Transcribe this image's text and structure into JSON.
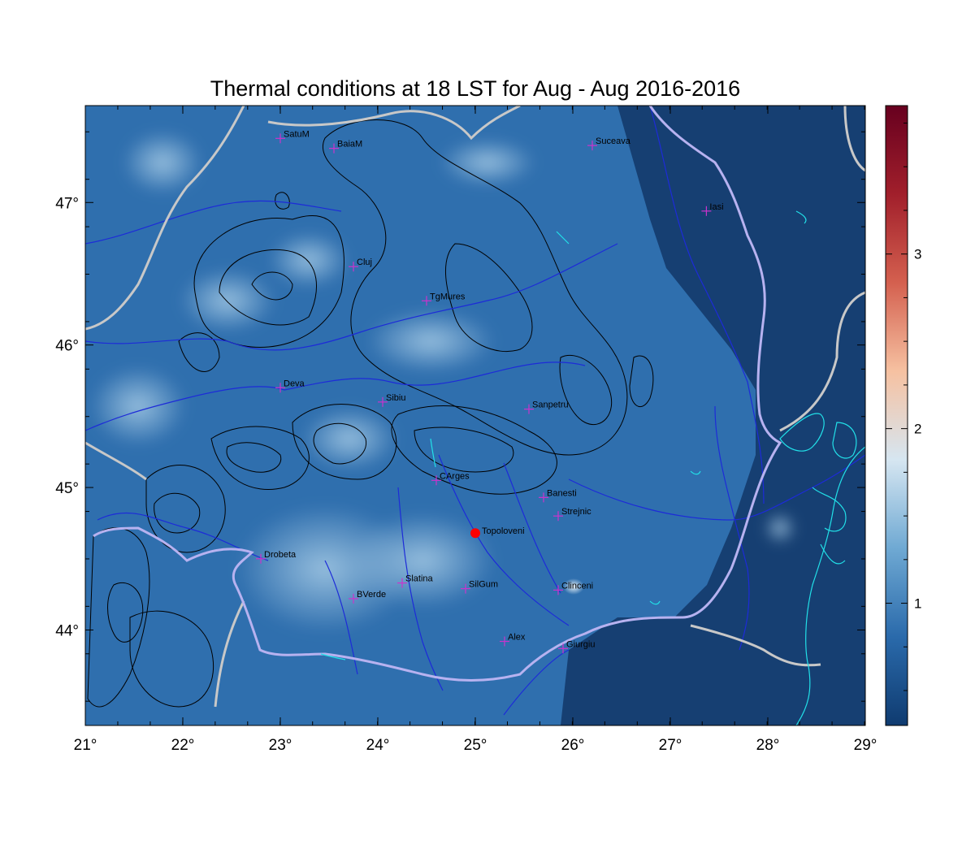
{
  "title": "Thermal conditions at 18 LST for Aug - Aug  2016-2016",
  "map": {
    "lon_range": [
      21,
      29
    ],
    "lat_range": [
      43.33,
      47.68
    ],
    "lon_ticks": [
      {
        "value": 21,
        "label": "21°"
      },
      {
        "value": 22,
        "label": "22°"
      },
      {
        "value": 23,
        "label": "23°"
      },
      {
        "value": 24,
        "label": "24°"
      },
      {
        "value": 25,
        "label": "25°"
      },
      {
        "value": 26,
        "label": "26°"
      },
      {
        "value": 27,
        "label": "27°"
      },
      {
        "value": 28,
        "label": "28°"
      },
      {
        "value": 29,
        "label": "29°"
      }
    ],
    "lat_ticks": [
      {
        "value": 44,
        "label": "44°"
      },
      {
        "value": 45,
        "label": "45°"
      },
      {
        "value": 46,
        "label": "46°"
      },
      {
        "value": 47,
        "label": "47°"
      }
    ],
    "colors": {
      "ocean_low": "#123f72",
      "field_mid": "#2f6fae",
      "field_high": "#9cc5e2",
      "rivers": "#1d2bd8",
      "borders": "#c8c8c8",
      "romania_border": "#b7b2f0",
      "coast": "#22e0e8",
      "contours": "#000000",
      "city_marker": "#cc33cc",
      "highlight": "#ff0000"
    },
    "cities": [
      {
        "name": "SatuM",
        "lon": 23.0,
        "lat": 47.45
      },
      {
        "name": "BaiaM",
        "lon": 23.55,
        "lat": 47.38
      },
      {
        "name": "Suceava",
        "lon": 26.2,
        "lat": 47.4
      },
      {
        "name": "Iasi",
        "lon": 27.37,
        "lat": 46.94
      },
      {
        "name": "Cluj",
        "lon": 23.75,
        "lat": 46.55
      },
      {
        "name": "TgMures",
        "lon": 24.5,
        "lat": 46.31
      },
      {
        "name": "Deva",
        "lon": 23.0,
        "lat": 45.7
      },
      {
        "name": "Sibiu",
        "lon": 24.05,
        "lat": 45.6
      },
      {
        "name": "Sanpetru",
        "lon": 25.55,
        "lat": 45.55
      },
      {
        "name": "CArges",
        "lon": 24.6,
        "lat": 45.05
      },
      {
        "name": "Banesti",
        "lon": 25.7,
        "lat": 44.93
      },
      {
        "name": "Strejnic",
        "lon": 25.85,
        "lat": 44.8
      },
      {
        "name": "Drobeta",
        "lon": 22.8,
        "lat": 44.5
      },
      {
        "name": "Slatina",
        "lon": 24.25,
        "lat": 44.33
      },
      {
        "name": "SilGum",
        "lon": 24.9,
        "lat": 44.29
      },
      {
        "name": "Clinceni",
        "lon": 25.85,
        "lat": 44.28
      },
      {
        "name": "BVerde",
        "lon": 23.75,
        "lat": 44.22
      },
      {
        "name": "Alex",
        "lon": 25.3,
        "lat": 43.92
      },
      {
        "name": "Giurgiu",
        "lon": 25.9,
        "lat": 43.87
      }
    ],
    "highlight_site": {
      "name": "Topoloveni",
      "lon": 25.0,
      "lat": 44.68
    }
  },
  "colorbar": {
    "min": 0.3,
    "max": 3.85,
    "ticks": [
      {
        "value": 1,
        "label": "1"
      },
      {
        "value": 2,
        "label": "2"
      },
      {
        "value": 3,
        "label": "3"
      }
    ],
    "stops": [
      "#0f3b70",
      "#2a6aab",
      "#6fa9d3",
      "#d6e6f1",
      "#f6c1a1",
      "#d4604f",
      "#a11f2b",
      "#67001f"
    ]
  }
}
